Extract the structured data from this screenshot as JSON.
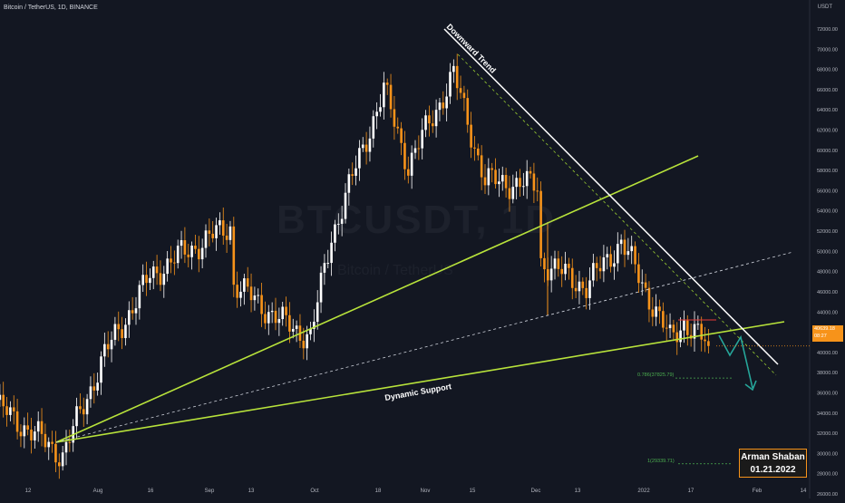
{
  "header": {
    "title": "Bitcoin / TetherUS, 1D, BINANCE",
    "axis_unit": "USDT"
  },
  "watermark": {
    "symbol": "BTCUSDT, 1D",
    "name": "Bitcoin / TetherUS"
  },
  "price_tag": {
    "value": "40639.18",
    "countdown": "08:27"
  },
  "author": {
    "name": "Arman Shaban",
    "date": "01.21.2022"
  },
  "colors": {
    "background": "#131722",
    "candle_up": "#ffffff",
    "candle_down": "#f7931a",
    "trend_green": "#b8e33b",
    "trendline_white": "#ffffff",
    "fib_green": "#4caf50",
    "projection_teal": "#26a69a"
  },
  "chart_data": {
    "type": "candlestick",
    "y_range": [
      26000,
      73000
    ],
    "y_ticks": [
      "72000.00",
      "70000.00",
      "68000.00",
      "66000.00",
      "64000.00",
      "62000.00",
      "60000.00",
      "58000.00",
      "56000.00",
      "54000.00",
      "52000.00",
      "50000.00",
      "48000.00",
      "46000.00",
      "44000.00",
      "42000.00",
      "40000.00",
      "38000.00",
      "36000.00",
      "34000.00",
      "32000.00",
      "30000.00",
      "28000.00",
      "26000.00"
    ],
    "x_ticks": [
      "12",
      "Aug",
      "16",
      "Sep",
      "13",
      "Oct",
      "18",
      "Nov",
      "15",
      "Dec",
      "13",
      "2022",
      "17",
      "Feb",
      "14"
    ],
    "series": [
      {
        "name": "BTCUSDT",
        "ohlc_anchors": [
          [
            "2021-07-02",
            34500
          ],
          [
            "2021-07-20",
            29800
          ],
          [
            "2021-08-01",
            39800
          ],
          [
            "2021-08-14",
            47500
          ],
          [
            "2021-08-22",
            49500
          ],
          [
            "2021-09-06",
            52500
          ],
          [
            "2021-09-07",
            46800
          ],
          [
            "2021-09-21",
            43000
          ],
          [
            "2021-09-29",
            41500
          ],
          [
            "2021-10-05",
            51500
          ],
          [
            "2021-10-20",
            66000
          ],
          [
            "2021-10-27",
            58500
          ],
          [
            "2021-11-09",
            67500
          ],
          [
            "2021-11-18",
            57000
          ],
          [
            "2021-12-03",
            56500
          ],
          [
            "2021-12-04",
            49000
          ],
          [
            "2021-12-17",
            46500
          ],
          [
            "2021-12-27",
            51000
          ],
          [
            "2022-01-10",
            41300
          ],
          [
            "2022-01-14",
            43000
          ],
          [
            "2022-01-21",
            40639
          ]
        ]
      }
    ],
    "annotations": [
      {
        "type": "trendline",
        "label": "Downward Trend"
      },
      {
        "type": "trendline",
        "label": "Dynamic Support"
      },
      {
        "type": "fib_level",
        "label": "0.786(37825.79)",
        "value": 37825.79
      },
      {
        "type": "fib_level",
        "label": "1(29339.71)",
        "value": 29339.71
      }
    ]
  }
}
